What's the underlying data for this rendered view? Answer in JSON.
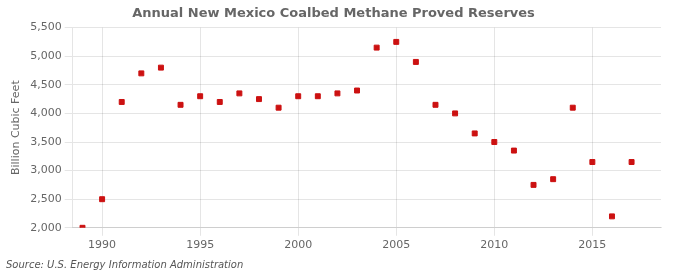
{
  "chart_data": {
    "type": "scatter",
    "title": "Annual New Mexico Coalbed Methane Proved Reserves",
    "ylabel": "Billion Cubic Feet",
    "annotation": "Source: U.S. Energy Information Administration",
    "x": [
      1989,
      1990,
      1991,
      1992,
      1993,
      1994,
      1995,
      1996,
      1997,
      1998,
      1999,
      2000,
      2001,
      2002,
      2003,
      2004,
      2005,
      2006,
      2007,
      2008,
      2009,
      2010,
      2011,
      2012,
      2013,
      2014,
      2015,
      2016,
      2017
    ],
    "values": [
      2000,
      2500,
      4200,
      4700,
      4800,
      4150,
      4300,
      4200,
      4350,
      4250,
      4100,
      4300,
      4300,
      4350,
      4400,
      5150,
      5250,
      4900,
      4150,
      4000,
      3650,
      3500,
      3350,
      2750,
      2850,
      4100,
      3150,
      2200,
      3150
    ],
    "color": "#cc1111",
    "marker": "square",
    "xlim": [
      1988.5,
      2018.5
    ],
    "ylim": [
      2000,
      5500
    ],
    "xticks": [
      1990,
      1995,
      2000,
      2005,
      2010,
      2015
    ],
    "yticks": [
      {
        "value": 2000,
        "label": "2,000"
      },
      {
        "value": 2500,
        "label": "2,500"
      },
      {
        "value": 3000,
        "label": "3,000"
      },
      {
        "value": 3500,
        "label": "3,500"
      },
      {
        "value": 4000,
        "label": "4,000"
      },
      {
        "value": 4500,
        "label": "4,500"
      },
      {
        "value": 5000,
        "label": "5,000"
      },
      {
        "value": 5500,
        "label": "5,500"
      }
    ],
    "grid": true
  }
}
